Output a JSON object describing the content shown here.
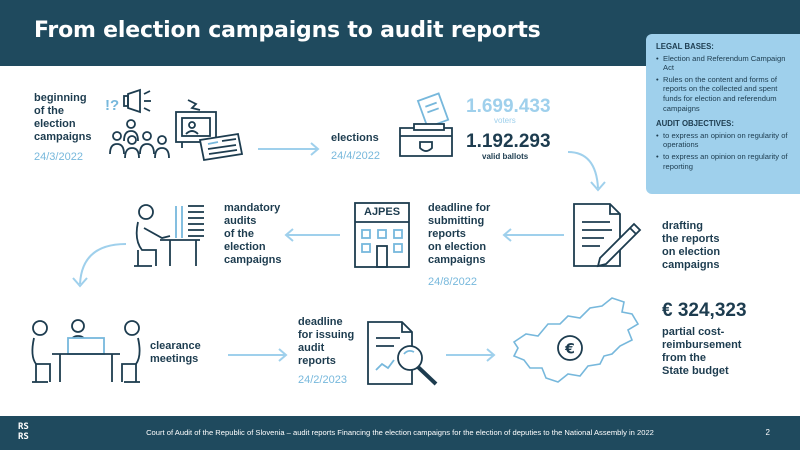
{
  "header": {
    "title": "From election campaigns to audit reports"
  },
  "legal": {
    "bases_heading": "LEGAL BASES:",
    "bases": [
      "Election and Referendum Campaign Act",
      "Rules on the content and forms of reports on the collected and spent funds for election and referendum campaigns"
    ],
    "objectives_heading": "AUDIT OBJECTIVES:",
    "objectives": [
      "to express an opinion on regularity of operations",
      "to express an opinion on regularity of reporting"
    ]
  },
  "steps": {
    "beginning": {
      "label": "beginning\nof the\nelection\ncampaigns",
      "date": "24/3/2022"
    },
    "elections": {
      "label": "elections",
      "date": "24/4/2022"
    },
    "voters": {
      "value": "1.699.433",
      "label": "voters"
    },
    "ballots": {
      "value": "1.192.293",
      "label": "valid ballots"
    },
    "drafting": {
      "label": "drafting\nthe reports\non election\ncampaigns"
    },
    "deadline_submit": {
      "label": "deadline for\nsubmitting\nreports\non election\ncampaigns",
      "date": "24/8/2022",
      "sign": "AJPES"
    },
    "mandatory": {
      "label": "mandatory\naudits\nof the\nelection\ncampaigns"
    },
    "clearance": {
      "label": "clearance\nmeetings"
    },
    "deadline_issue": {
      "label": "deadline\nfor issuing\naudit\nreports",
      "date": "24/2/2023"
    },
    "reimbursement": {
      "value": "€ 324,323",
      "label": "partial cost-\nreimbursement\nfrom the\nState budget"
    }
  },
  "footer": {
    "logo": "RS\nRS",
    "text": "Court of Audit of the Republic of Slovenia – audit reports Financing the election campaigns for the election of deputies to the National Assembly in 2022",
    "page": "2"
  },
  "colors": {
    "navy": "#1f4a5e",
    "light_blue": "#9fd0ec",
    "accent_blue": "#77b8dc",
    "text": "#1d3c4f"
  }
}
